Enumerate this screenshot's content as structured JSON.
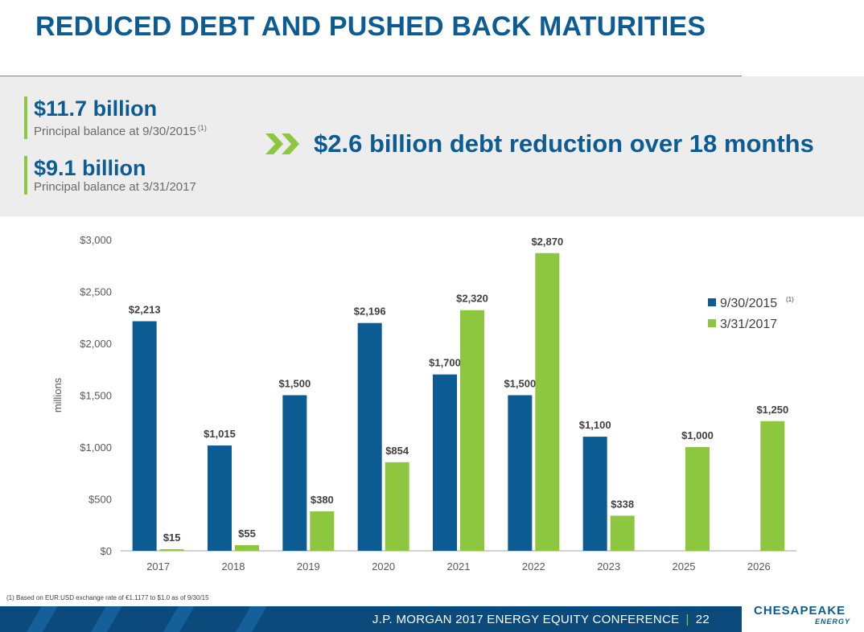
{
  "title": "REDUCED DEBT AND PUSHED BACK MATURITIES",
  "summary": {
    "stat1_value": "$11.7 billion",
    "stat1_label": "Principal balance at 9/30/2015",
    "stat1_note": "(1)",
    "stat2_value": "$9.1 billion",
    "stat2_label": "Principal balance at 3/31/2017",
    "reduction": "$2.6 billion debt reduction over 18 months"
  },
  "colors": {
    "primary": "#0d5b93",
    "accent": "#8dc63f",
    "series1": "#0d5b93",
    "series2": "#8dc63f"
  },
  "chart_data": {
    "type": "bar",
    "ylabel": "millions",
    "ylim": [
      0,
      3000
    ],
    "yticks": [
      0,
      500,
      1000,
      1500,
      2000,
      2500,
      3000
    ],
    "ytick_labels": [
      "$0",
      "$500",
      "$1,000",
      "$1,500",
      "$2,000",
      "$2,500",
      "$3,000"
    ],
    "categories": [
      "2017",
      "2018",
      "2019",
      "2020",
      "2021",
      "2022",
      "2023",
      "2025",
      "2026"
    ],
    "series": [
      {
        "name": "9/30/2015",
        "note": "(1)",
        "values": [
          2213,
          1015,
          1500,
          2196,
          1700,
          1500,
          1100,
          null,
          null
        ],
        "labels": [
          "$2,213",
          "$1,015",
          "$1,500",
          "$2,196",
          "$1,700",
          "$1,500",
          "$1,100",
          null,
          null
        ]
      },
      {
        "name": "3/31/2017",
        "note": "",
        "values": [
          15,
          55,
          380,
          854,
          2320,
          2870,
          338,
          1000,
          1250
        ],
        "labels": [
          "$15",
          "$55",
          "$380",
          "$854",
          "$2,320",
          "$2,870",
          "$338",
          "$1,000",
          "$1,250"
        ]
      }
    ],
    "legend": "right",
    "grid": false
  },
  "footnote": "(1)  Based on EUR:USD exchange rate of €1.1177 to $1.0 as of 9/30/15",
  "footer": {
    "conference": "J.P. MORGAN 2017 ENERGY EQUITY CONFERENCE",
    "separator": "|",
    "page": "22"
  },
  "logo": {
    "name": "CHESAPEAKE",
    "sub": "ENERGY"
  }
}
